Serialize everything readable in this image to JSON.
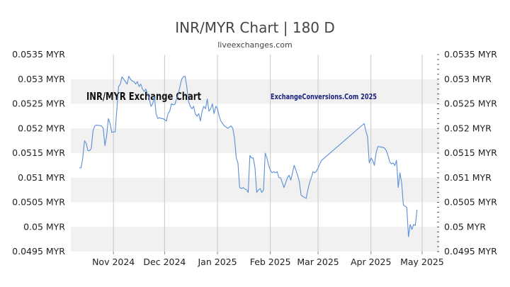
{
  "chart_data": {
    "type": "line",
    "title": "INR/MYR Chart | 180 D",
    "subtitle": "liveexchanges.com",
    "annotations": [
      "INR/MYR Exchange Chart",
      "ExchangeConversions.Com 2025"
    ],
    "xlabel": "",
    "ylabel": "",
    "ylim": [
      0.0495,
      0.0535
    ],
    "y_ticks": [
      {
        "value": 0.0535,
        "label": "0.0535 MYR"
      },
      {
        "value": 0.053,
        "label": "0.053 MYR"
      },
      {
        "value": 0.0525,
        "label": "0.0525 MYR"
      },
      {
        "value": 0.052,
        "label": "0.052 MYR"
      },
      {
        "value": 0.0515,
        "label": "0.0515 MYR"
      },
      {
        "value": 0.051,
        "label": "0.051 MYR"
      },
      {
        "value": 0.0505,
        "label": "0.0505 MYR"
      },
      {
        "value": 0.05,
        "label": "0.05 MYR"
      },
      {
        "value": 0.0495,
        "label": "0.0495 MYR"
      }
    ],
    "x_ticks": [
      {
        "x": 20,
        "label": "Nov 2024"
      },
      {
        "x": 50,
        "label": "Dec 2024"
      },
      {
        "x": 81,
        "label": "Jan 2025"
      },
      {
        "x": 112,
        "label": "Feb 2025"
      },
      {
        "x": 140,
        "label": "Mar 2025"
      },
      {
        "x": 171,
        "label": "Apr 2025"
      },
      {
        "x": 201,
        "label": "May 2025"
      }
    ],
    "xlim": [
      -5,
      211
    ],
    "grid": true,
    "series": [
      {
        "color": "#5b8fd6",
        "points": [
          [
            0,
            0.0512
          ],
          [
            1,
            0.0512
          ],
          [
            2,
            0.0514
          ],
          [
            3,
            0.05175
          ],
          [
            4,
            0.0517
          ],
          [
            5,
            0.05155
          ],
          [
            6,
            0.05155
          ],
          [
            7,
            0.0516
          ],
          [
            8,
            0.05195
          ],
          [
            9,
            0.05205
          ],
          [
            10,
            0.05207
          ],
          [
            11,
            0.05206
          ],
          [
            12,
            0.05206
          ],
          [
            13,
            0.05205
          ],
          [
            14,
            0.052
          ],
          [
            15,
            0.05165
          ],
          [
            16,
            0.05185
          ],
          [
            17,
            0.0522
          ],
          [
            18,
            0.0521
          ],
          [
            19,
            0.05192
          ],
          [
            20,
            0.05193
          ],
          [
            21,
            0.05193
          ],
          [
            22,
            0.0524
          ],
          [
            23,
            0.05285
          ],
          [
            24,
            0.0529
          ],
          [
            25,
            0.05305
          ],
          [
            26,
            0.053
          ],
          [
            27,
            0.05295
          ],
          [
            28,
            0.0529
          ],
          [
            29,
            0.05306
          ],
          [
            30,
            0.053
          ],
          [
            31,
            0.05296
          ],
          [
            32,
            0.05295
          ],
          [
            33,
            0.0529
          ],
          [
            34,
            0.05295
          ],
          [
            35,
            0.05285
          ],
          [
            36,
            0.0529
          ],
          [
            37,
            0.0528
          ],
          [
            38,
            0.05275
          ],
          [
            39,
            0.0528
          ],
          [
            40,
            0.0527
          ],
          [
            41,
            0.0526
          ],
          [
            42,
            0.05245
          ],
          [
            43,
            0.0525
          ],
          [
            44,
            0.05265
          ],
          [
            45,
            0.0523
          ],
          [
            46,
            0.0522
          ],
          [
            47,
            0.05222
          ],
          [
            48,
            0.0522
          ],
          [
            49,
            0.0522
          ],
          [
            50,
            0.05218
          ],
          [
            51,
            0.05215
          ],
          [
            52,
            0.0523
          ],
          [
            53,
            0.05235
          ],
          [
            54,
            0.0525
          ],
          [
            55,
            0.05248
          ],
          [
            56,
            0.05249
          ],
          [
            57,
            0.0526
          ],
          [
            58,
            0.0527
          ],
          [
            59,
            0.05285
          ],
          [
            60,
            0.053
          ],
          [
            61,
            0.05305
          ],
          [
            62,
            0.05306
          ],
          [
            63,
            0.05285
          ],
          [
            64,
            0.05255
          ],
          [
            65,
            0.05245
          ],
          [
            66,
            0.0524
          ],
          [
            67,
            0.05245
          ],
          [
            68,
            0.0523
          ],
          [
            69,
            0.05225
          ],
          [
            70,
            0.0523
          ],
          [
            71,
            0.05215
          ],
          [
            72,
            0.05235
          ],
          [
            73,
            0.05245
          ],
          [
            74,
            0.0524
          ],
          [
            75,
            0.0526
          ],
          [
            76,
            0.05235
          ],
          [
            77,
            0.0524
          ],
          [
            78,
            0.0525
          ],
          [
            79,
            0.0523
          ],
          [
            80,
            0.05245
          ],
          [
            81,
            0.0524
          ],
          [
            82,
            0.05225
          ],
          [
            83,
            0.05215
          ],
          [
            84,
            0.0521
          ],
          [
            85,
            0.05205
          ],
          [
            86,
            0.05203
          ],
          [
            87,
            0.052
          ],
          [
            88,
            0.05203
          ],
          [
            89,
            0.05205
          ],
          [
            90,
            0.052
          ],
          [
            91,
            0.0518
          ],
          [
            92,
            0.0514
          ],
          [
            93,
            0.0513
          ],
          [
            94,
            0.0508
          ],
          [
            95,
            0.05078
          ],
          [
            96,
            0.0508
          ],
          [
            97,
            0.05077
          ],
          [
            98,
            0.05076
          ],
          [
            99,
            0.0507
          ],
          [
            100,
            0.05145
          ],
          [
            101,
            0.0514
          ],
          [
            102,
            0.0514
          ],
          [
            103,
            0.0512
          ],
          [
            104,
            0.0507
          ],
          [
            105,
            0.05075
          ],
          [
            106,
            0.05078
          ],
          [
            107,
            0.0507
          ],
          [
            108,
            0.05075
          ],
          [
            109,
            0.0515
          ],
          [
            110,
            0.0514
          ],
          [
            111,
            0.05125
          ],
          [
            112,
            0.05115
          ],
          [
            113,
            0.0511
          ],
          [
            114,
            0.05112
          ],
          [
            115,
            0.0511
          ],
          [
            116,
            0.05112
          ],
          [
            117,
            0.051
          ],
          [
            118,
            0.051
          ],
          [
            119,
            0.0509
          ],
          [
            120,
            0.0508
          ],
          [
            121,
            0.0509
          ],
          [
            122,
            0.051
          ],
          [
            123,
            0.05105
          ],
          [
            124,
            0.05095
          ],
          [
            125,
            0.0511
          ],
          [
            126,
            0.05125
          ],
          [
            127,
            0.05115
          ],
          [
            128,
            0.05105
          ],
          [
            129,
            0.05092
          ],
          [
            130,
            0.05065
          ],
          [
            131,
            0.05062
          ],
          [
            132,
            0.0506
          ],
          [
            133,
            0.05058
          ],
          [
            134,
            0.05075
          ],
          [
            135,
            0.0509
          ],
          [
            136,
            0.051
          ],
          [
            137,
            0.05112
          ],
          [
            138,
            0.0511
          ],
          [
            139,
            0.05113
          ],
          [
            140,
            0.0512
          ],
          [
            141,
            0.05128
          ],
          [
            142,
            0.05135
          ],
          [
            167,
            0.0521
          ],
          [
            168,
            0.05195
          ],
          [
            169,
            0.05183
          ],
          [
            170,
            0.0513
          ],
          [
            171,
            0.0514
          ],
          [
            172,
            0.05135
          ],
          [
            173,
            0.05125
          ],
          [
            174,
            0.0515
          ],
          [
            175,
            0.05163
          ],
          [
            176,
            0.05163
          ],
          [
            177,
            0.05162
          ],
          [
            178,
            0.05162
          ],
          [
            179,
            0.0516
          ],
          [
            180,
            0.05155
          ],
          [
            181,
            0.05145
          ],
          [
            182,
            0.05132
          ],
          [
            183,
            0.05128
          ],
          [
            184,
            0.0513
          ],
          [
            185,
            0.05125
          ],
          [
            186,
            0.05135
          ],
          [
            187,
            0.0508
          ],
          [
            188,
            0.0511
          ],
          [
            189,
            0.0509
          ],
          [
            190,
            0.05045
          ],
          [
            191,
            0.05042
          ],
          [
            192,
            0.0504
          ],
          [
            193,
            0.0498
          ],
          [
            194,
            0.05005
          ],
          [
            195,
            0.04995
          ],
          [
            196,
            0.05005
          ],
          [
            197,
            0.05003
          ],
          [
            198,
            0.05035
          ]
        ]
      }
    ]
  }
}
